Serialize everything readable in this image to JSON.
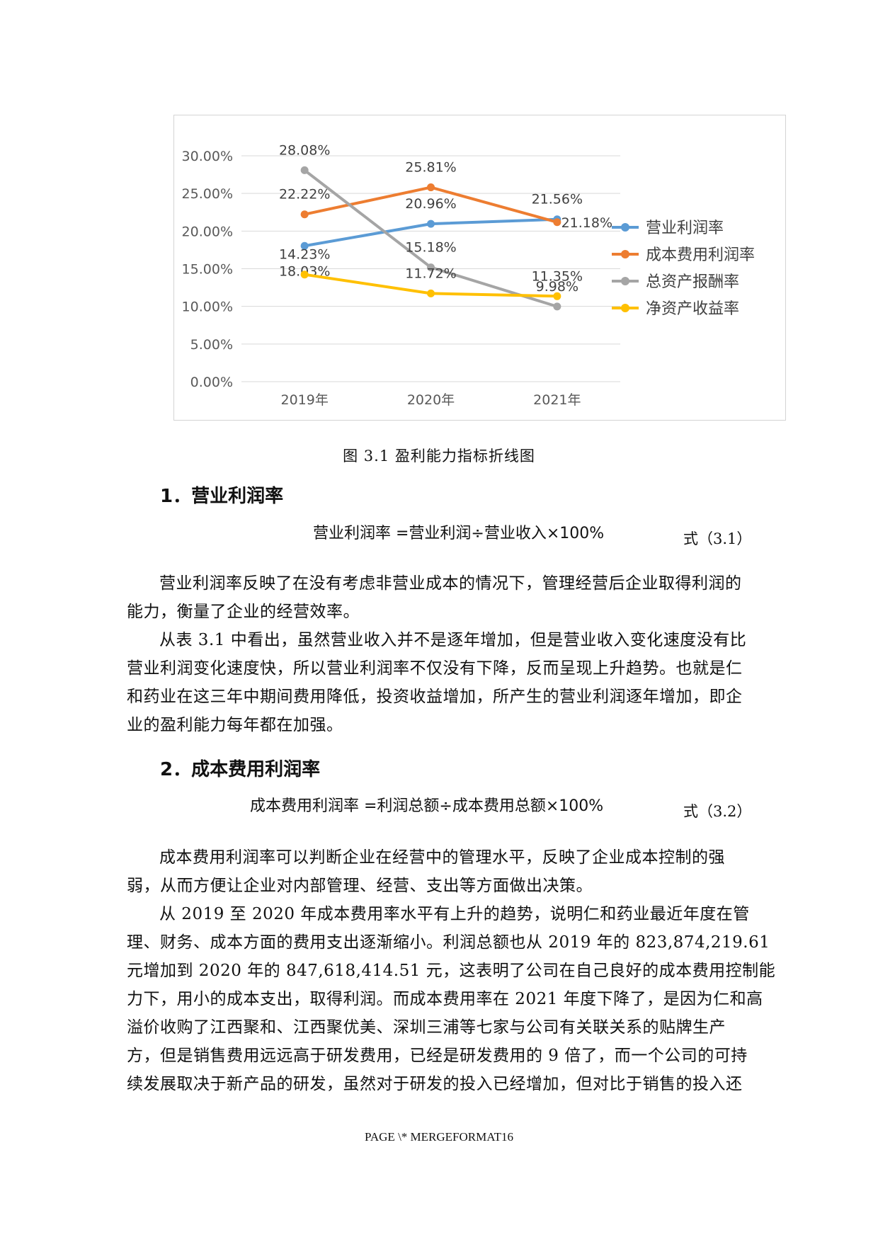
{
  "chart_data": {
    "type": "line",
    "categories": [
      "2019年",
      "2020年",
      "2021年"
    ],
    "y_ticks": [
      "30.00%",
      "25.00%",
      "20.00%",
      "15.00%",
      "10.00%",
      "5.00%",
      "0.00%"
    ],
    "ylim": [
      0,
      30
    ],
    "grid": true,
    "legend": "right",
    "series": [
      {
        "name": "营业利润率",
        "color": "#5b9bd5",
        "values": [
          18.03,
          20.96,
          21.56
        ],
        "labels": [
          "18.03%",
          "20.96%",
          "21.56%"
        ]
      },
      {
        "name": "成本费用利润率",
        "color": "#ed7d31",
        "values": [
          22.22,
          25.81,
          21.18
        ],
        "labels": [
          "22.22%",
          "25.81%",
          "21.18%"
        ]
      },
      {
        "name": "总资产报酬率",
        "color": "#a5a5a5",
        "values": [
          28.08,
          15.18,
          9.98
        ],
        "labels": [
          "28.08%",
          "15.18%",
          "9.98%"
        ]
      },
      {
        "name": "净资产收益率",
        "color": "#ffc000",
        "values": [
          14.23,
          11.72,
          11.35
        ],
        "labels": [
          "14.23%",
          "11.72%",
          "11.35%"
        ]
      }
    ]
  },
  "caption": "图 3.1  盈利能力指标折线图",
  "section1": {
    "heading": "1．营业利润率",
    "formula": "营业利润率 =营业利润÷营业收入×100%",
    "eq_no": "式（3.1）",
    "para1": [
      "营业利润率反映了在没有考虑非营业成本的情况下，管理经营后企业取得利润的",
      "能力，衡量了企业的经营效率。"
    ],
    "para2": [
      "从表 3.1 中看出，虽然营业收入并不是逐年增加，但是营业收入变化速度没有比",
      "营业利润变化速度快，所以营业利润率不仅没有下降，反而呈现上升趋势。也就是仁",
      "和药业在这三年中期间费用降低，投资收益增加，所产生的营业利润逐年增加，即企",
      "业的盈利能力每年都在加强。"
    ]
  },
  "section2": {
    "heading": "2．成本费用利润率",
    "formula": "成本费用利润率 =利润总额÷成本费用总额×100%",
    "eq_no": "式（3.2）",
    "para1": [
      "成本费用利润率可以判断企业在经营中的管理水平，反映了企业成本控制的强",
      "弱，从而方便让企业对内部管理、经营、支出等方面做出决策。"
    ],
    "para2": [
      "从 2019 至 2020 年成本费用率水平有上升的趋势，说明仁和药业最近年度在管",
      "理、财务、成本方面的费用支出逐渐缩小。利润总额也从 2019 年的 823,874,219.61",
      "元增加到 2020 年的 847,618,414.51 元，这表明了公司在自己良好的成本费用控制能",
      "力下，用小的成本支出，取得利润。而成本费用率在 2021 年度下降了，是因为仁和高",
      "溢价收购了江西聚和、江西聚优美、深圳三浦等七家与公司有关联关系的贴牌生产",
      "方，但是销售费用远远高于研发费用，已经是研发费用的 9 倍了，而一个公司的可持",
      "续发展取决于新产品的研发，虽然对于研发的投入已经增加，但对比于销售的投入还"
    ]
  },
  "footer": "PAGE   \\* MERGEFORMAT16"
}
